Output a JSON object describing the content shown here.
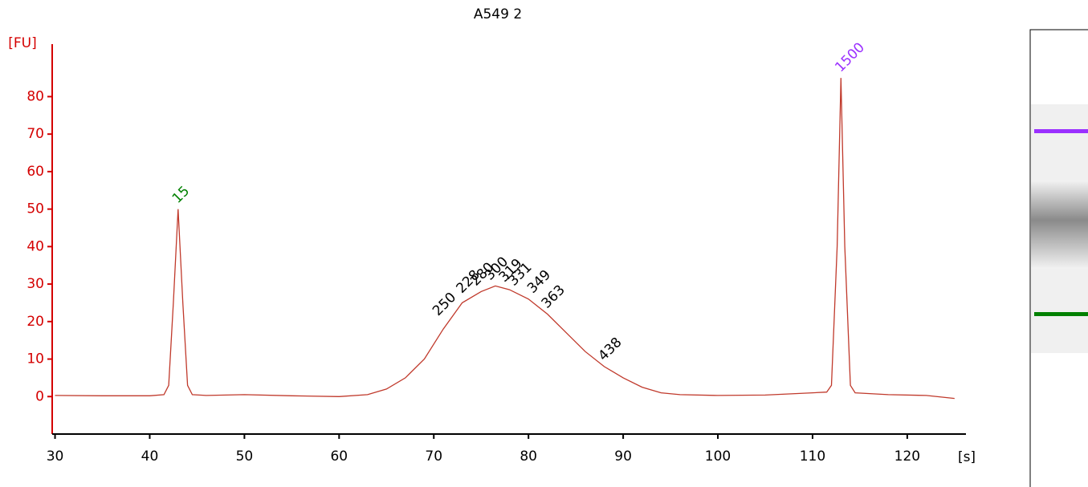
{
  "chart_data": {
    "type": "line",
    "title": "A549 2",
    "y_label": "[FU]",
    "x_label": "[s]",
    "xlim": [
      29.7,
      126.2
    ],
    "ylim": [
      -10,
      94
    ],
    "xticks": [
      30,
      40,
      50,
      60,
      70,
      80,
      90,
      100,
      110,
      120
    ],
    "yticks": [
      0,
      10,
      20,
      30,
      40,
      50,
      60,
      70,
      80
    ],
    "axis_color": "#d40000",
    "x": [
      30,
      35,
      40,
      41.5,
      42,
      42.5,
      43,
      43.5,
      44,
      44.5,
      46,
      50,
      55,
      60,
      63,
      65,
      67,
      69,
      71,
      73,
      75,
      76.5,
      78,
      80,
      82,
      84,
      86,
      88,
      90,
      92,
      94,
      96,
      100,
      105,
      110,
      111.5,
      112,
      112.6,
      113,
      113.4,
      114,
      114.5,
      118,
      122,
      125
    ],
    "series": [
      {
        "color": "#c0392b",
        "values": [
          0.3,
          0.2,
          0.2,
          0.5,
          3,
          25,
          50,
          25,
          3,
          0.5,
          0.3,
          0.5,
          0.2,
          0,
          0.5,
          2,
          5,
          10,
          18,
          25,
          28,
          29.5,
          28.5,
          26,
          22,
          17,
          12,
          8,
          5,
          2.5,
          1,
          0.5,
          0.3,
          0.4,
          1,
          1.2,
          3,
          40,
          85,
          40,
          3,
          1,
          0.5,
          0.3,
          -0.5
        ]
      }
    ],
    "annotations": [
      {
        "text": "15",
        "x": 43,
        "y": 50,
        "color": "#008000"
      },
      {
        "text": "1500",
        "x": 113,
        "y": 85,
        "color": "#9b30ff"
      },
      {
        "text": "250",
        "x": 70.5,
        "y": 20,
        "color": "#000000"
      },
      {
        "text": "228",
        "x": 73,
        "y": 26,
        "color": "#000000"
      },
      {
        "text": "280",
        "x": 74.5,
        "y": 28,
        "color": "#000000"
      },
      {
        "text": "300",
        "x": 76,
        "y": 29.5,
        "color": "#000000"
      },
      {
        "text": "319",
        "x": 77.5,
        "y": 29,
        "color": "#000000"
      },
      {
        "text": "331",
        "x": 78.5,
        "y": 28,
        "color": "#000000"
      },
      {
        "text": "349",
        "x": 80.5,
        "y": 26,
        "color": "#000000"
      },
      {
        "text": "363",
        "x": 82,
        "y": 22,
        "color": "#000000"
      },
      {
        "text": "438",
        "x": 88,
        "y": 8,
        "color": "#000000"
      }
    ]
  }
}
